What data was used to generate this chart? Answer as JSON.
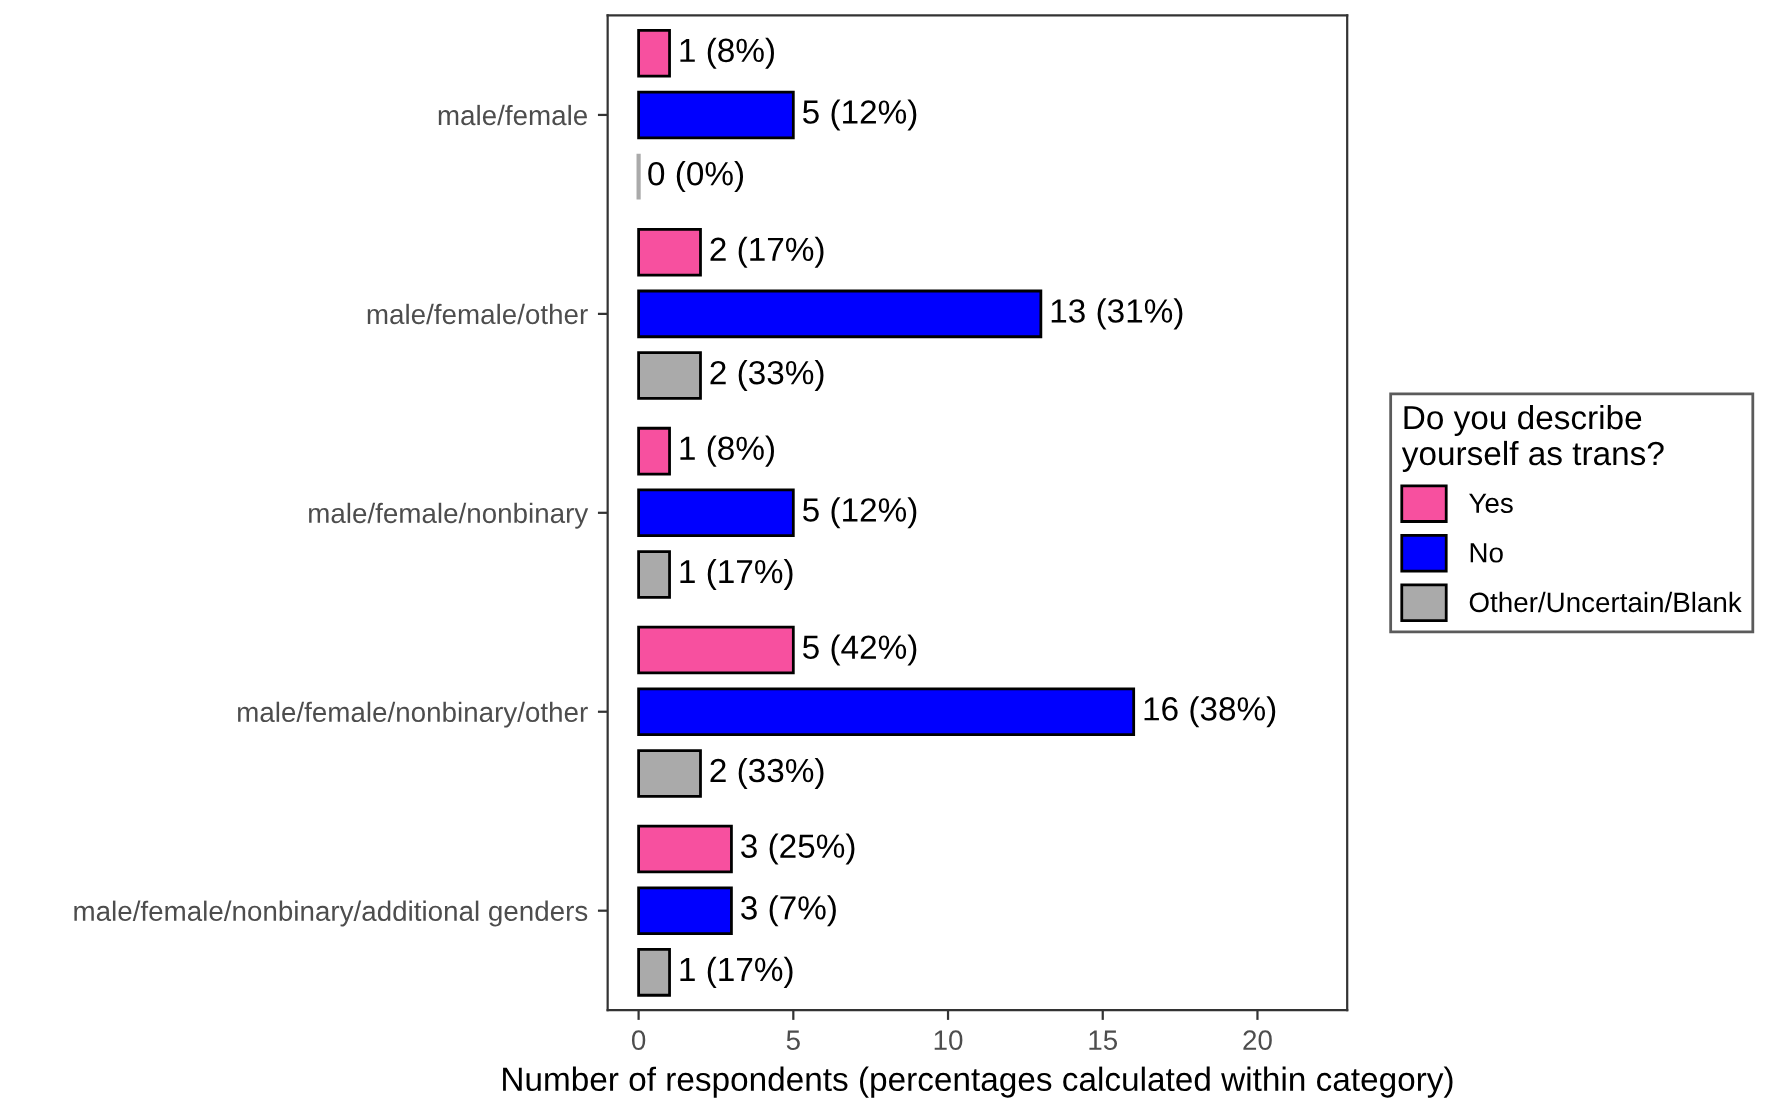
{
  "chart_data": {
    "type": "bar",
    "orientation": "horizontal",
    "categories": [
      "male/female",
      "male/female/other",
      "male/female/nonbinary",
      "male/female/nonbinary/other",
      "male/female/nonbinary/additional genders"
    ],
    "series": [
      {
        "name": "Yes",
        "color": "#f7509f",
        "values": [
          1,
          2,
          1,
          5,
          3
        ],
        "value_labels": [
          "1 (8%)",
          "2 (17%)",
          "1 (8%)",
          "5 (42%)",
          "3 (25%)"
        ]
      },
      {
        "name": "No",
        "color": "#0000ff",
        "values": [
          5,
          13,
          5,
          16,
          3
        ],
        "value_labels": [
          "5 (12%)",
          "13 (31%)",
          "5 (12%)",
          "16 (38%)",
          "3 (7%)"
        ]
      },
      {
        "name": "Other/Uncertain/Blank",
        "color": "#aaaaaa",
        "values": [
          0,
          2,
          1,
          2,
          1
        ],
        "value_labels": [
          "0 (0%)",
          "2 (33%)",
          "1 (17%)",
          "2 (33%)",
          "1 (17%)"
        ]
      }
    ],
    "xlabel": "Number of respondents (percentages calculated within category)",
    "legend_title": "Do you describe\nyourself as trans?",
    "xlim": [
      -1,
      22.9
    ],
    "xticks": [
      0,
      5,
      10,
      15,
      20
    ],
    "grid": false,
    "legend": "right"
  }
}
